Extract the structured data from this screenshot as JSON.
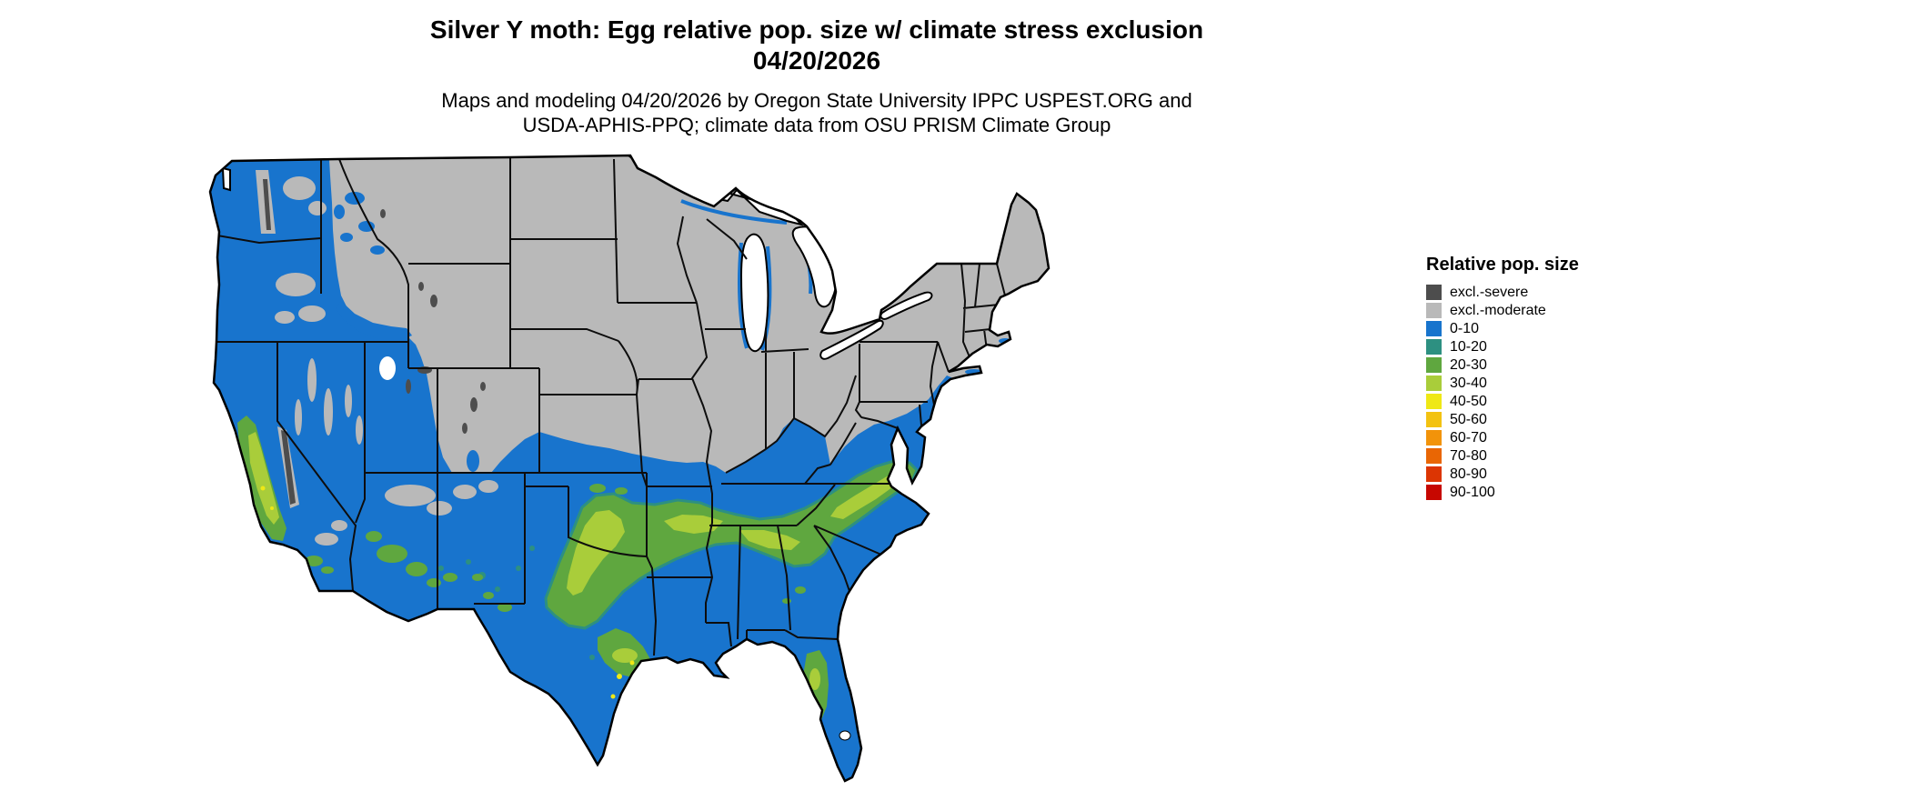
{
  "header": {
    "title_line1": "Silver Y moth: Egg relative pop. size w/ climate stress exclusion",
    "title_line2": "04/20/2026",
    "subtitle_line1": "Maps and modeling 04/20/2026 by Oregon State University IPPC USPEST.ORG and",
    "subtitle_line2": "USDA-APHIS-PPQ; climate data from OSU PRISM Climate Group"
  },
  "legend": {
    "title": "Relative pop. size",
    "items": [
      {
        "label": "excl.-severe",
        "color": "#4d4d4d"
      },
      {
        "label": "excl.-moderate",
        "color": "#b9b9b9"
      },
      {
        "label": "0-10",
        "color": "#1874cd"
      },
      {
        "label": "10-20",
        "color": "#2d9081"
      },
      {
        "label": "20-30",
        "color": "#5fa73f"
      },
      {
        "label": "30-40",
        "color": "#a9cd3a"
      },
      {
        "label": "40-50",
        "color": "#efe815"
      },
      {
        "label": "50-60",
        "color": "#f3c211"
      },
      {
        "label": "60-70",
        "color": "#f2930a"
      },
      {
        "label": "70-80",
        "color": "#e96604"
      },
      {
        "label": "80-90",
        "color": "#dc3503"
      },
      {
        "label": "90-100",
        "color": "#c70700"
      }
    ]
  },
  "map": {
    "name": "Continental US relative population size raster map",
    "colors": {
      "water": "#ffffff",
      "state_border": "#0d0d0d",
      "outline": "#000000"
    }
  }
}
